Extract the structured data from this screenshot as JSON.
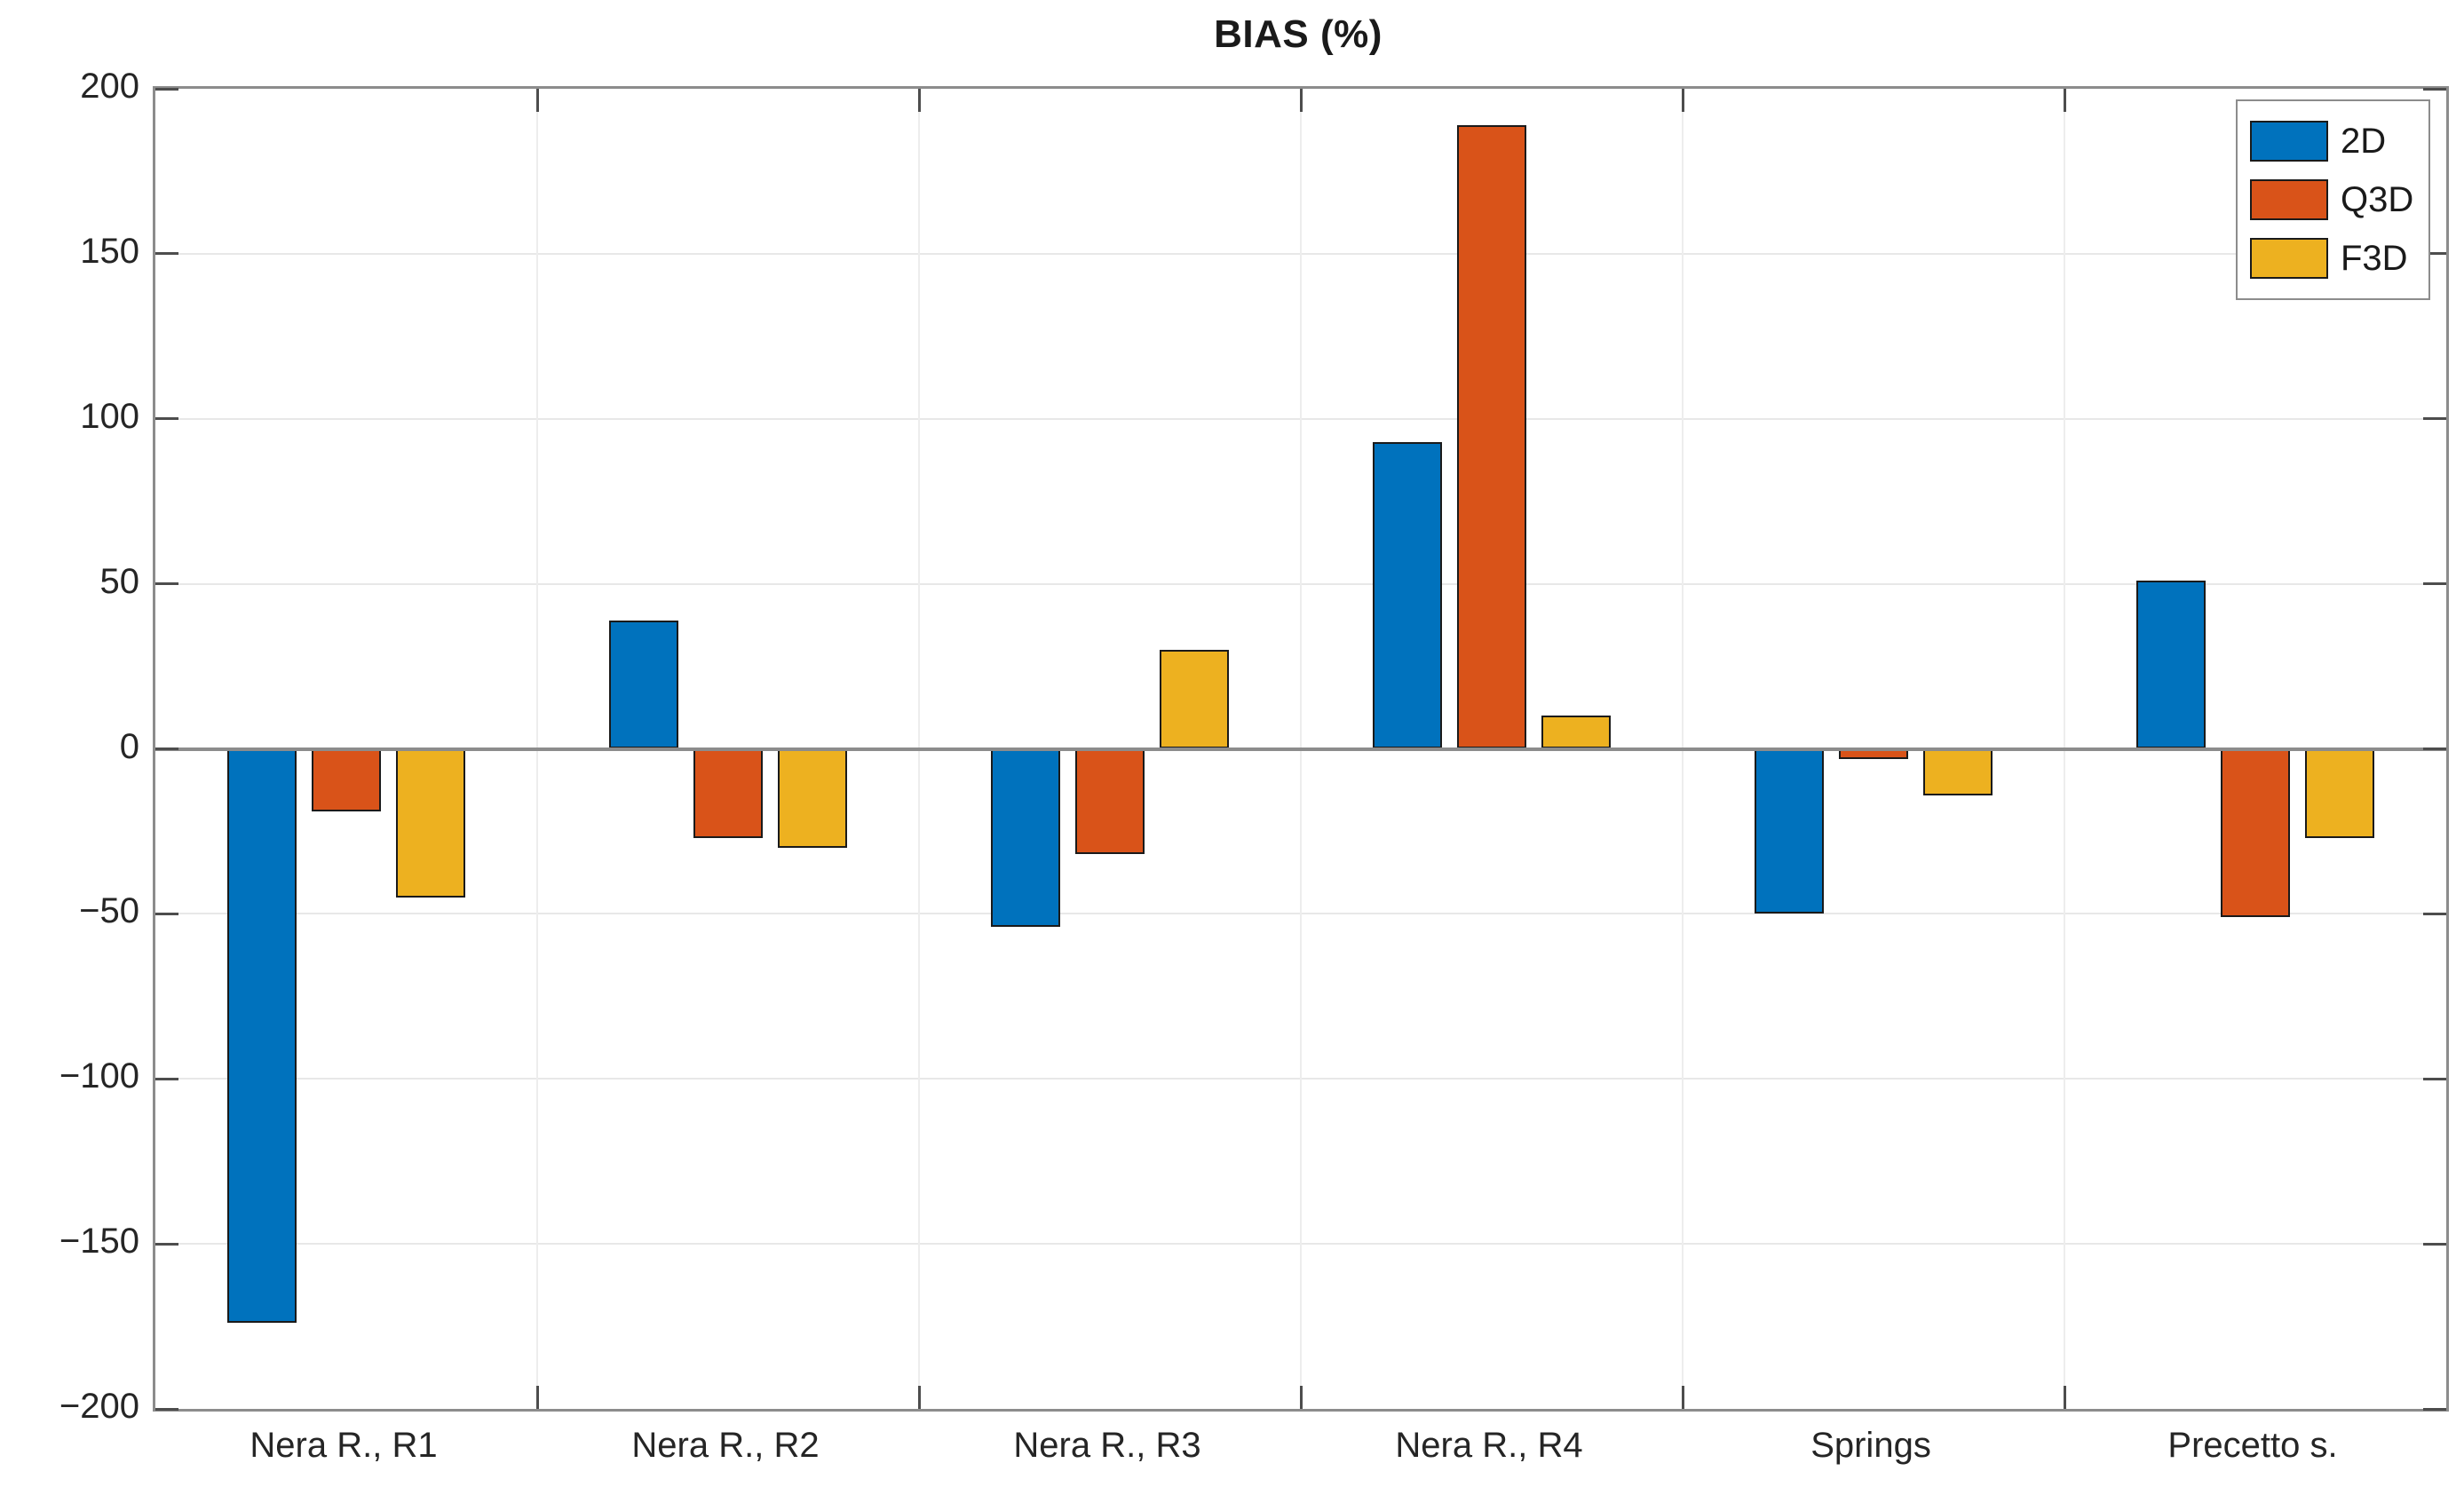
{
  "chart_data": {
    "type": "bar",
    "title": "BIAS (%)",
    "categories": [
      "Nera R., R1",
      "Nera R., R2",
      "Nera R., R3",
      "Nera R., R4",
      "Springs",
      "Precetto s."
    ],
    "series": [
      {
        "name": "2D",
        "color": "#0072BD",
        "values": [
          -174,
          39,
          -54,
          93,
          -50,
          51
        ]
      },
      {
        "name": "Q3D",
        "color": "#D95319",
        "values": [
          -19,
          -27,
          -32,
          189,
          -3,
          -51
        ]
      },
      {
        "name": "F3D",
        "color": "#EDB120",
        "values": [
          -45,
          -30,
          30,
          10,
          -14,
          -27
        ]
      }
    ],
    "ylim": [
      -200,
      200
    ],
    "yticks": [
      {
        "value": 200,
        "label": "200"
      },
      {
        "value": 150,
        "label": "150"
      },
      {
        "value": 100,
        "label": "100"
      },
      {
        "value": 50,
        "label": "50"
      },
      {
        "value": 0,
        "label": "0"
      },
      {
        "value": -50,
        "label": "−50"
      },
      {
        "value": -100,
        "label": "−100"
      },
      {
        "value": -150,
        "label": "−150"
      },
      {
        "value": -200,
        "label": "−200"
      }
    ],
    "xlabel": "",
    "ylabel": "",
    "grid": true,
    "legend_position": "top-right",
    "colors": {
      "axis_line": "#8c8c8c",
      "tick_mark": "#4d4d4d",
      "grid_line_h": "#e8e8e8",
      "grid_line_v": "#ededed",
      "bar_edge": "#1a1a1a",
      "text": "#252525",
      "background": "#ffffff"
    }
  }
}
